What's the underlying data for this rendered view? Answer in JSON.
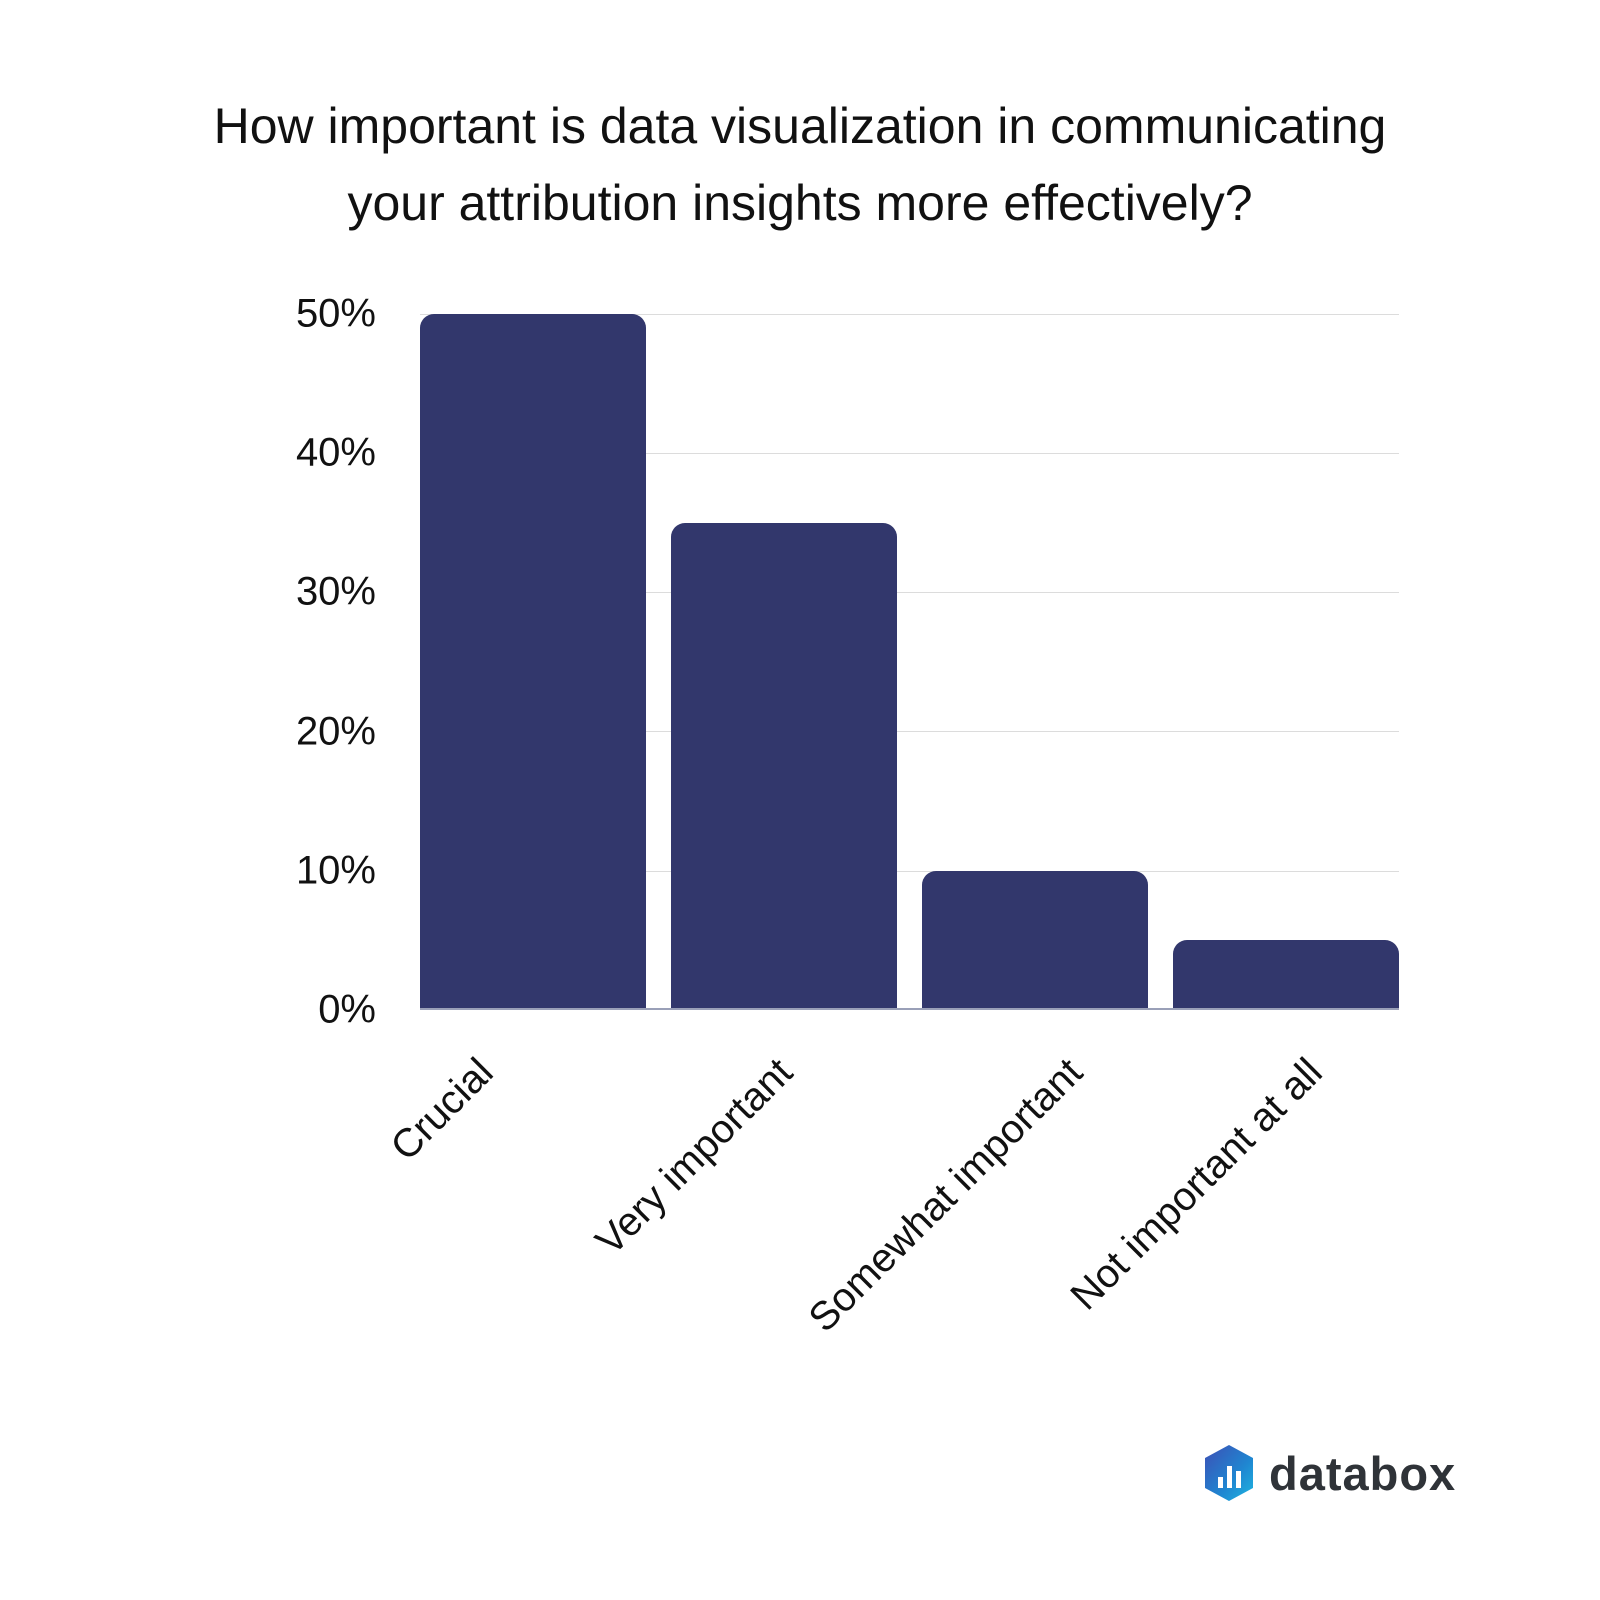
{
  "chart_data": {
    "type": "bar",
    "title": "How important is data visualization in communicating your attribution insights more effectively?",
    "title_lines": [
      "How important is data visualization in communicating",
      "your attribution insights more effectively?"
    ],
    "categories": [
      "Crucial",
      "Very important",
      "Somewhat important",
      "Not important at all"
    ],
    "values": [
      50,
      35,
      10,
      5
    ],
    "unit": "%",
    "xlabel": "",
    "ylabel": "",
    "ylim": [
      0,
      50
    ],
    "yticks": [
      "0%",
      "10%",
      "20%",
      "30%",
      "40%",
      "50%"
    ],
    "grid": true,
    "legend": null,
    "bar_color": "#32376c"
  },
  "branding": {
    "logo_text": "databox",
    "logo_icon": "databox-hexagon-bars-icon"
  }
}
